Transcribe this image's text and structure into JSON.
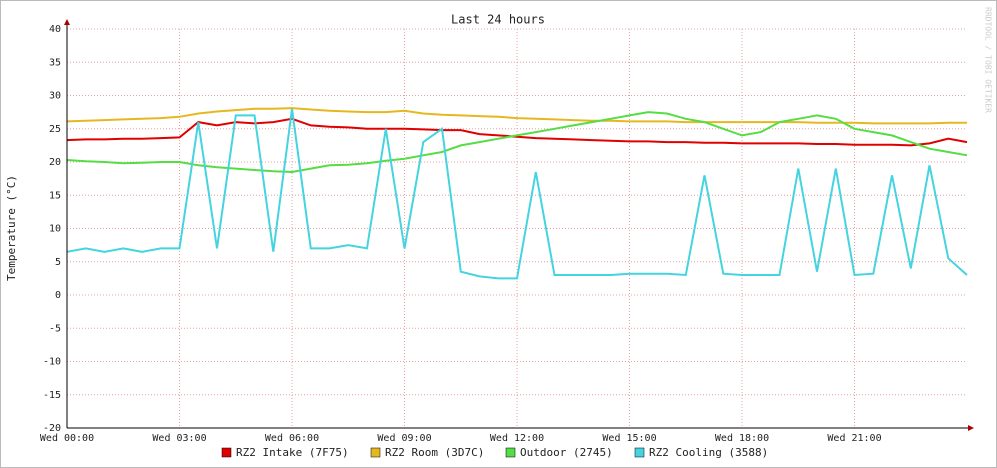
{
  "chart_data": {
    "type": "line",
    "title": "Last 24 hours",
    "y_label": "Temperature (°C)",
    "watermark": "RRDTOOL / TOBI OETIKER",
    "x": [
      0,
      0.5,
      1,
      1.5,
      2,
      2.5,
      3,
      3.5,
      4,
      4.5,
      5,
      5.5,
      6,
      6.5,
      7,
      7.5,
      8,
      8.5,
      9,
      9.5,
      10,
      10.5,
      11,
      11.5,
      12,
      12.5,
      13,
      13.5,
      14,
      14.5,
      15,
      15.5,
      16,
      16.5,
      17,
      17.5,
      18,
      18.5,
      19,
      19.5,
      20,
      20.5,
      21,
      21.5,
      22,
      22.5,
      23,
      23.5,
      24
    ],
    "xlim": [
      0,
      24
    ],
    "xticks": [
      {
        "value": 0,
        "label": "Wed 00:00"
      },
      {
        "value": 3,
        "label": "Wed 03:00"
      },
      {
        "value": 6,
        "label": "Wed 06:00"
      },
      {
        "value": 9,
        "label": "Wed 09:00"
      },
      {
        "value": 12,
        "label": "Wed 12:00"
      },
      {
        "value": 15,
        "label": "Wed 15:00"
      },
      {
        "value": 18,
        "label": "Wed 18:00"
      },
      {
        "value": 21,
        "label": "Wed 21:00"
      }
    ],
    "ylim": [
      -20,
      40
    ],
    "yticks": [
      -20,
      -15,
      -10,
      -5,
      0,
      5,
      10,
      15,
      20,
      25,
      30,
      35,
      40
    ],
    "grid": true,
    "series": [
      {
        "name": "RZ2 Intake (7F75)",
        "color": "#e00000",
        "values": [
          23.3,
          23.4,
          23.4,
          23.5,
          23.5,
          23.6,
          23.7,
          26,
          25.5,
          26,
          25.8,
          26,
          26.5,
          25.5,
          25.3,
          25.2,
          25,
          25,
          25,
          24.9,
          24.8,
          24.8,
          24.2,
          24,
          23.8,
          23.6,
          23.5,
          23.4,
          23.3,
          23.2,
          23.1,
          23.1,
          23,
          23,
          22.9,
          22.9,
          22.8,
          22.8,
          22.8,
          22.8,
          22.7,
          22.7,
          22.6,
          22.6,
          22.6,
          22.5,
          22.8,
          23.5,
          23
        ]
      },
      {
        "name": "RZ2 Room (3D7C)",
        "color": "#e6b820",
        "values": [
          26.1,
          26.2,
          26.3,
          26.4,
          26.5,
          26.6,
          26.8,
          27.3,
          27.6,
          27.8,
          28,
          28,
          28.1,
          27.9,
          27.7,
          27.6,
          27.5,
          27.5,
          27.7,
          27.3,
          27.1,
          27,
          26.9,
          26.8,
          26.6,
          26.5,
          26.4,
          26.3,
          26.2,
          26.2,
          26.1,
          26.1,
          26.1,
          26,
          26,
          26,
          26,
          26,
          26,
          26,
          25.9,
          25.9,
          25.9,
          25.8,
          25.8,
          25.8,
          25.8,
          25.9,
          25.9
        ]
      },
      {
        "name": "Outdoor (2745)",
        "color": "#55dd44",
        "values": [
          20.3,
          20.1,
          20,
          19.8,
          19.9,
          20,
          20,
          19.5,
          19.2,
          19,
          18.8,
          18.6,
          18.5,
          19,
          19.5,
          19.6,
          19.8,
          20.2,
          20.5,
          21,
          21.5,
          22.5,
          23,
          23.5,
          24,
          24.5,
          25,
          25.5,
          26,
          26.5,
          27,
          27.5,
          27.3,
          26.5,
          26,
          25,
          24,
          24.5,
          26,
          26.5,
          27,
          26.5,
          25,
          24.5,
          24,
          23,
          22,
          21.5,
          21
        ]
      },
      {
        "name": "RZ2 Cooling (3588)",
        "color": "#44d4e0",
        "values": [
          6.5,
          7,
          6.5,
          7,
          6.5,
          7,
          7,
          26,
          7,
          27,
          27,
          6.5,
          28,
          7,
          7,
          7.5,
          7,
          25,
          7,
          23,
          25,
          3.5,
          2.8,
          2.5,
          2.5,
          18.5,
          3,
          3,
          3,
          3,
          3.2,
          3.2,
          3.2,
          3,
          18,
          3.2,
          3,
          3,
          3,
          19,
          3.5,
          19,
          3,
          3.2,
          18,
          4,
          19.5,
          5.5,
          3
        ]
      }
    ]
  }
}
